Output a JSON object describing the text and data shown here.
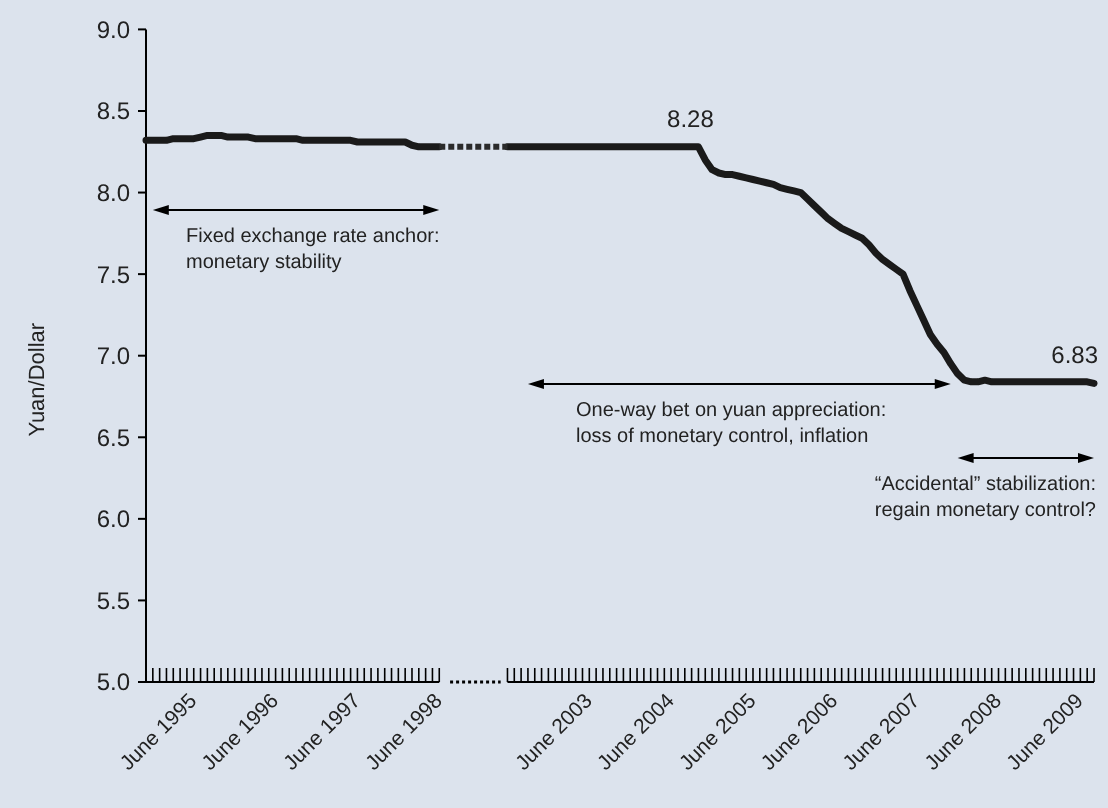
{
  "chart_data": {
    "type": "line",
    "ylabel": "Yuan/Dollar",
    "ylim": [
      5,
      9
    ],
    "yticks": [
      {
        "value": 5,
        "label": "5.0"
      },
      "5.5",
      {
        "value": 6,
        "label": "6.0"
      },
      "6.5",
      {
        "value": 7,
        "label": "7.0"
      },
      "7.5",
      {
        "value": 8,
        "label": "8.0"
      },
      "8.5",
      {
        "value": 9,
        "label": "9.0"
      }
    ],
    "marker": "none",
    "categories": [
      null,
      null,
      null,
      null,
      null,
      null,
      null,
      "June 1995",
      null,
      null,
      null,
      null,
      null,
      null,
      null,
      null,
      null,
      null,
      null,
      "June 1996",
      null,
      null,
      null,
      null,
      null,
      null,
      null,
      null,
      null,
      null,
      null,
      "June 1997",
      null,
      null,
      null,
      null,
      null,
      null,
      null,
      null,
      null,
      null,
      null,
      "June 1998",
      null,
      null,
      null,
      null,
      null,
      null,
      null,
      null,
      null,
      null,
      null,
      null,
      null,
      null,
      null,
      null,
      null,
      null,
      null,
      null,
      null,
      "June 2003",
      null,
      null,
      null,
      null,
      null,
      null,
      null,
      null,
      null,
      null,
      null,
      "June 2004",
      null,
      null,
      null,
      null,
      null,
      null,
      null,
      null,
      null,
      null,
      null,
      "June 2005",
      null,
      null,
      null,
      null,
      null,
      null,
      null,
      null,
      null,
      null,
      null,
      "June 2006",
      null,
      null,
      null,
      null,
      null,
      null,
      null,
      null,
      null,
      null,
      null,
      "June 2007",
      null,
      null,
      null,
      null,
      null,
      null,
      null,
      null,
      null,
      null,
      null,
      "June 2008",
      null,
      null,
      null,
      null,
      null,
      null,
      null,
      null,
      null,
      null,
      null,
      "June 2009",
      null,
      null
    ],
    "series": [
      {
        "color": "#1a1a1a",
        "line_style": "solid",
        "values": [
          8.32,
          8.32,
          8.32,
          8.32,
          8.33,
          8.33,
          8.33,
          8.33,
          8.34,
          8.35,
          8.35,
          8.35,
          8.34,
          8.34,
          8.34,
          8.34,
          8.33,
          8.33,
          8.33,
          8.33,
          8.33,
          8.33,
          8.33,
          8.32,
          8.32,
          8.32,
          8.32,
          8.32,
          8.32,
          8.32,
          8.32,
          8.31,
          8.31,
          8.31,
          8.31,
          8.31,
          8.31,
          8.31,
          8.31,
          8.29,
          8.28,
          8.28,
          8.28,
          8.28,
          null,
          null,
          null,
          null,
          null,
          null,
          null,
          null,
          null,
          8.28,
          8.28,
          8.28,
          8.28,
          8.28,
          8.28,
          8.28,
          8.28,
          8.28,
          8.28,
          8.28,
          8.28,
          8.28,
          8.28,
          8.28,
          8.28,
          8.28,
          8.28,
          8.28,
          8.28,
          8.28,
          8.28,
          8.28,
          8.28,
          8.28,
          8.28,
          8.28,
          8.28,
          8.28,
          8.2,
          8.14,
          8.12,
          8.11,
          8.11,
          8.1,
          8.09,
          8.08,
          8.07,
          8.06,
          8.05,
          8.03,
          8.02,
          8.01,
          8.0,
          7.96,
          7.92,
          7.88,
          7.84,
          7.81,
          7.78,
          7.76,
          7.74,
          7.72,
          7.68,
          7.63,
          7.59,
          7.56,
          7.53,
          7.5,
          7.4,
          7.31,
          7.22,
          7.13,
          7.07,
          7.02,
          6.95,
          6.89,
          6.85,
          6.84,
          6.84,
          6.85,
          6.84,
          6.84,
          6.84,
          6.84,
          6.84,
          6.84,
          6.84,
          6.84,
          6.84,
          6.84,
          6.84,
          6.84,
          6.84,
          6.84,
          6.84,
          6.83
        ],
        "value_labels": [
          null,
          null,
          null,
          null,
          null,
          null,
          null,
          null,
          null,
          null,
          null,
          null,
          null,
          null,
          null,
          null,
          null,
          null,
          null,
          null,
          null,
          null,
          null,
          null,
          null,
          null,
          null,
          null,
          null,
          null,
          null,
          null,
          null,
          null,
          null,
          null,
          null,
          null,
          null,
          null,
          null,
          null,
          null,
          null,
          null,
          null,
          null,
          null,
          null,
          null,
          null,
          null,
          null,
          null,
          null,
          null,
          null,
          null,
          null,
          null,
          null,
          null,
          null,
          null,
          null,
          null,
          null,
          null,
          null,
          null,
          null,
          null,
          null,
          null,
          null,
          null,
          null,
          null,
          null,
          null,
          null,
          "8.28",
          null,
          null,
          null,
          null,
          null,
          null,
          null,
          null,
          null,
          null,
          null,
          null,
          null,
          null,
          null,
          null,
          null,
          null,
          null,
          null,
          null,
          null,
          null,
          null,
          null,
          null,
          null,
          null,
          null,
          null,
          null,
          null,
          null,
          null,
          null,
          null,
          null,
          null,
          null,
          null,
          null,
          null,
          null,
          null,
          null,
          null,
          null,
          null,
          null,
          null,
          null,
          null,
          null,
          null,
          null,
          null,
          null,
          "6.83"
        ]
      },
      {
        "color": "#2b2b2b",
        "line_style": "dotted",
        "values": [
          null,
          null,
          null,
          null,
          null,
          null,
          null,
          null,
          null,
          null,
          null,
          null,
          null,
          null,
          null,
          null,
          null,
          null,
          null,
          null,
          null,
          null,
          null,
          null,
          null,
          null,
          null,
          null,
          null,
          null,
          null,
          null,
          null,
          null,
          null,
          null,
          null,
          null,
          null,
          null,
          null,
          null,
          null,
          8.28,
          8.28,
          8.28,
          8.28,
          8.28,
          8.28,
          8.28,
          8.28,
          8.28,
          8.28,
          8.28,
          null,
          null,
          null,
          null,
          null,
          null,
          null,
          null,
          null,
          null,
          null,
          null,
          null,
          null,
          null,
          null,
          null,
          null,
          null,
          null,
          null,
          null,
          null,
          null,
          null,
          null,
          null,
          null,
          null,
          null,
          null,
          null,
          null,
          null,
          null,
          null,
          null,
          null,
          null,
          null,
          null,
          null,
          null,
          null,
          null,
          null,
          null,
          null,
          null,
          null,
          null,
          null,
          null,
          null,
          null,
          null,
          null,
          null,
          null,
          null,
          null,
          null,
          null,
          null,
          null,
          null,
          null,
          null,
          null,
          null,
          null,
          null,
          null,
          null,
          null,
          null,
          null,
          null,
          null,
          null,
          null,
          null,
          null,
          null,
          null,
          null
        ]
      }
    ],
    "annotations": [
      "Fixed exchange rate anchor:\nmonetary stability",
      "One-way bet on yuan appreciation:\nloss of monetary control, inflation",
      "“Accidental” stabilization:\nregain monetary control?"
    ]
  }
}
